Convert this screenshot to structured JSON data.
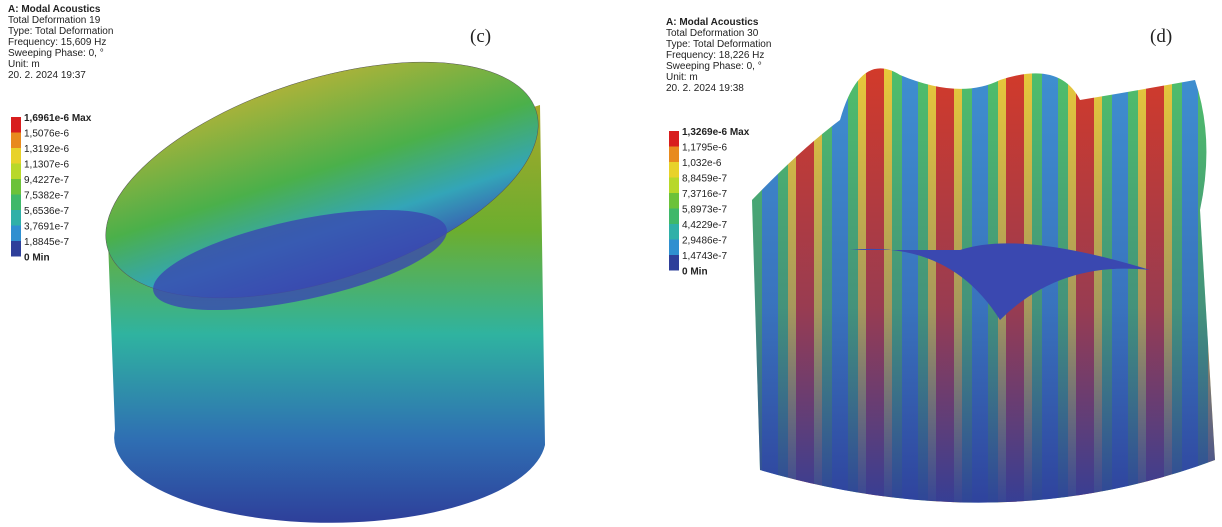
{
  "panels": [
    {
      "header": {
        "title": "A: Modal Acoustics",
        "lines": [
          "Total Deformation 19",
          "Type: Total Deformation",
          "Frequency: 15,609 Hz",
          "Sweeping Phase: 0, °",
          "Unit: m",
          "20. 2. 2024 19:37"
        ]
      },
      "legend": [
        "1,6961e-6 Max",
        "1,5076e-6",
        "1,3192e-6",
        "1,1307e-6",
        "9,4227e-7",
        "7,5382e-7",
        "5,6536e-7",
        "3,7691e-7",
        "1,8845e-7",
        "0 Min"
      ],
      "label": "(c)"
    },
    {
      "header": {
        "title": "A: Modal Acoustics",
        "lines": [
          "Total Deformation 30",
          "Type: Total Deformation",
          "Frequency: 18,226 Hz",
          "Sweeping Phase: 0, °",
          "Unit: m",
          "20. 2. 2024 19:38"
        ]
      },
      "legend": [
        "1,3269e-6 Max",
        "1,1795e-6",
        "1,032e-6",
        "8,8459e-7",
        "7,3716e-7",
        "5,8973e-7",
        "4,4229e-7",
        "2,9486e-7",
        "1,4743e-7",
        "0 Min"
      ],
      "label": "(d)"
    }
  ]
}
